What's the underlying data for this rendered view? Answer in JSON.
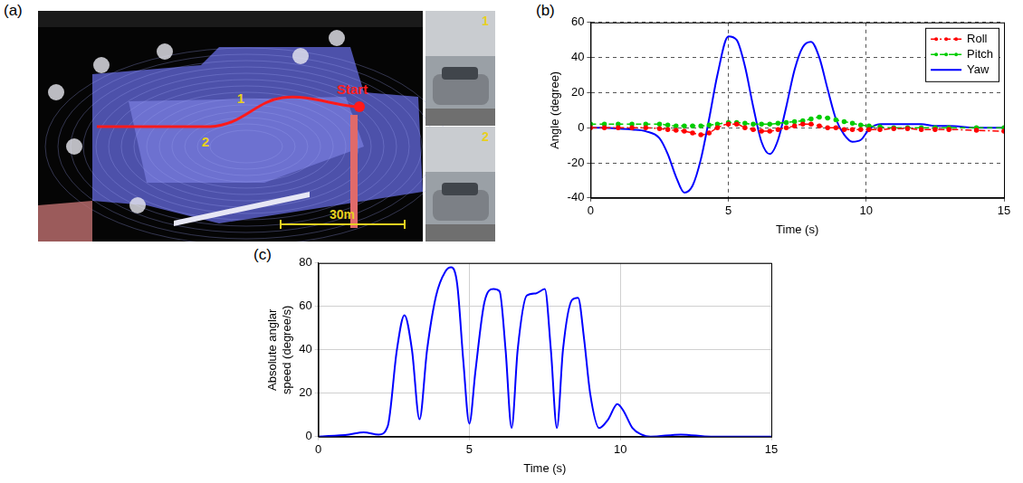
{
  "image_panel": {
    "panel_label": "(a)",
    "start_label": "Start",
    "waypoints": [
      "1",
      "2"
    ],
    "scale_bar": "30m",
    "photo_labels": [
      "1",
      "2"
    ]
  },
  "chart_data": [
    {
      "type": "line",
      "panel_label": "(b)",
      "x_label": "Time (s)",
      "y_label": "Angle (degree)",
      "x": [
        0,
        0.5,
        1,
        1.5,
        2,
        2.5,
        2.8,
        3.1,
        3.4,
        3.7,
        4,
        4.3,
        4.6,
        5,
        5.3,
        5.6,
        5.9,
        6.2,
        6.5,
        6.8,
        7.1,
        7.4,
        7.7,
        8,
        8.3,
        8.6,
        8.9,
        9.2,
        9.5,
        9.8,
        10.1,
        10.5,
        11,
        11.5,
        12,
        12.5,
        13,
        14,
        15
      ],
      "series": [
        {
          "name": "Roll",
          "color": "#ff0000",
          "marker": "circle",
          "line_style": "dashdot",
          "values": [
            0,
            0,
            0,
            0,
            0,
            -0.5,
            -1,
            -1.5,
            -2,
            -3,
            -4,
            -3,
            0,
            2,
            2,
            0,
            -1,
            -2,
            -2,
            -1,
            0,
            1,
            2,
            2,
            1,
            0,
            0,
            -1,
            -1,
            -1,
            -1,
            -1,
            -0.5,
            -0.5,
            -1,
            -1,
            -1,
            -1.5,
            -2
          ]
        },
        {
          "name": "Pitch",
          "color": "#00cc00",
          "marker": "circle",
          "line_style": "dashed",
          "values": [
            2,
            2,
            2,
            2,
            2,
            2,
            1.5,
            1,
            1,
            1,
            1,
            1.5,
            2,
            3,
            3,
            2.5,
            2,
            2,
            2,
            2.5,
            3,
            3.5,
            4,
            5,
            6,
            5.5,
            4.5,
            3.5,
            2.5,
            1.5,
            1,
            0.5,
            0,
            0,
            0,
            0,
            0,
            0,
            0
          ]
        },
        {
          "name": "Yaw",
          "color": "#0000ff",
          "marker": "none",
          "line_style": "solid",
          "values": [
            0,
            0,
            -0.5,
            -1,
            -2,
            -6,
            -15,
            -28,
            -37,
            -33,
            -18,
            5,
            30,
            52,
            50,
            35,
            12,
            -8,
            -15,
            -7,
            12,
            33,
            46,
            49,
            40,
            22,
            5,
            -4,
            -8,
            -7,
            -1,
            2,
            2,
            2,
            2,
            1,
            1,
            0,
            0
          ]
        }
      ],
      "xlim": [
        0,
        15
      ],
      "xticks": [
        0,
        5,
        10,
        15
      ],
      "ylim": [
        -40,
        60
      ],
      "yticks": [
        -40,
        -20,
        0,
        20,
        40,
        60
      ],
      "grid": true,
      "legend": "upper right"
    },
    {
      "type": "line",
      "panel_label": "(c)",
      "x_label": "Time (s)",
      "y_label": "Absolute anglar speed (degree/s)",
      "x": [
        0,
        1,
        1.5,
        2,
        2.3,
        2.6,
        2.85,
        3.1,
        3.35,
        3.6,
        3.9,
        4.2,
        4.4,
        4.6,
        4.8,
        5,
        5.2,
        5.5,
        5.8,
        6,
        6.2,
        6.4,
        6.6,
        6.9,
        7.2,
        7.5,
        7.7,
        7.9,
        8.1,
        8.4,
        8.6,
        8.8,
        9,
        9.3,
        9.6,
        9.9,
        10.1,
        10.4,
        10.7,
        11,
        12,
        13,
        14,
        15
      ],
      "values": [
        0,
        1,
        2,
        1,
        5,
        40,
        56,
        40,
        8,
        40,
        65,
        76,
        78,
        70,
        35,
        6,
        30,
        62,
        68,
        67,
        40,
        4,
        40,
        65,
        66,
        68,
        40,
        4,
        40,
        63,
        64,
        45,
        20,
        4,
        8,
        15,
        12,
        4,
        1,
        0,
        1,
        0,
        0,
        0
      ],
      "color": "#0000ff",
      "line_style": "solid",
      "xlim": [
        0,
        15
      ],
      "xticks": [
        0,
        5,
        10,
        15
      ],
      "ylim": [
        0,
        80
      ],
      "yticks": [
        0,
        20,
        40,
        60,
        80
      ],
      "grid": true
    }
  ]
}
